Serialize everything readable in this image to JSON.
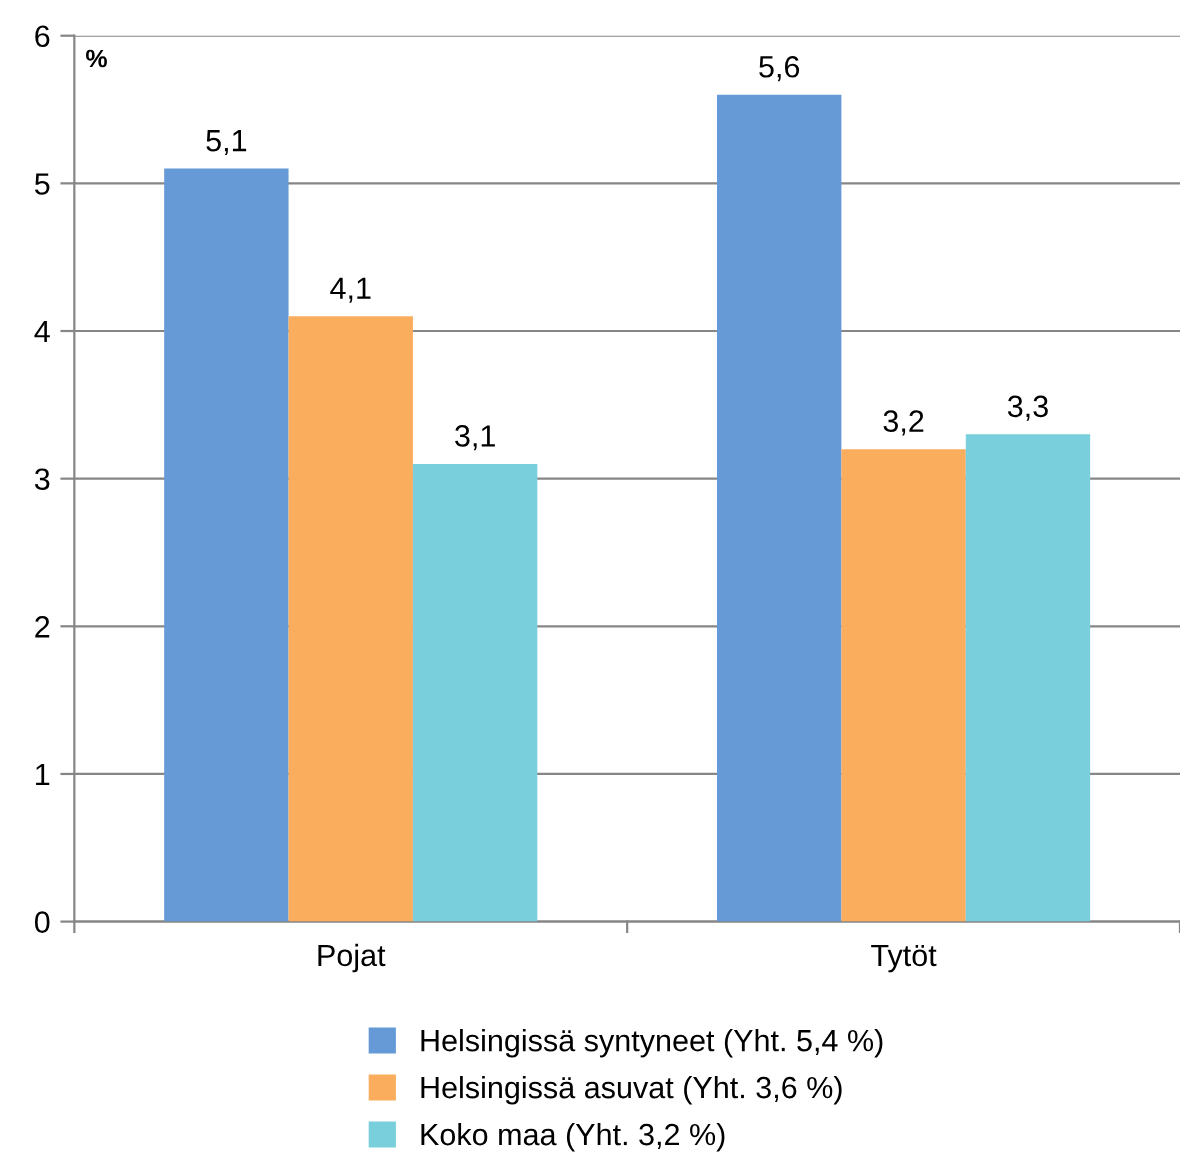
{
  "chart_data": {
    "type": "bar",
    "ylabel": "%",
    "categories": [
      "Pojat",
      "Tytöt"
    ],
    "series": [
      {
        "name": "Helsingissä syntyneet (Yht. 5,4 %)",
        "color": "#659ad6",
        "values": [
          5.1,
          5.6
        ],
        "value_labels": [
          "5,1",
          "5,6"
        ]
      },
      {
        "name": "Helsingissä asuvat (Yht. 3,6 %)",
        "color": "#fbad5e",
        "values": [
          4.1,
          3.2
        ],
        "value_labels": [
          "4,1",
          "3,2"
        ]
      },
      {
        "name": "Koko maa (Yht. 3,2 %)",
        "color": "#79cfdb",
        "values": [
          3.1,
          3.3
        ],
        "value_labels": [
          "3,1",
          "3,3"
        ]
      }
    ],
    "ylim": [
      0,
      6
    ],
    "yticks": [
      0,
      1,
      2,
      3,
      4,
      5,
      6
    ],
    "grid": "y",
    "legend": "bottom"
  }
}
